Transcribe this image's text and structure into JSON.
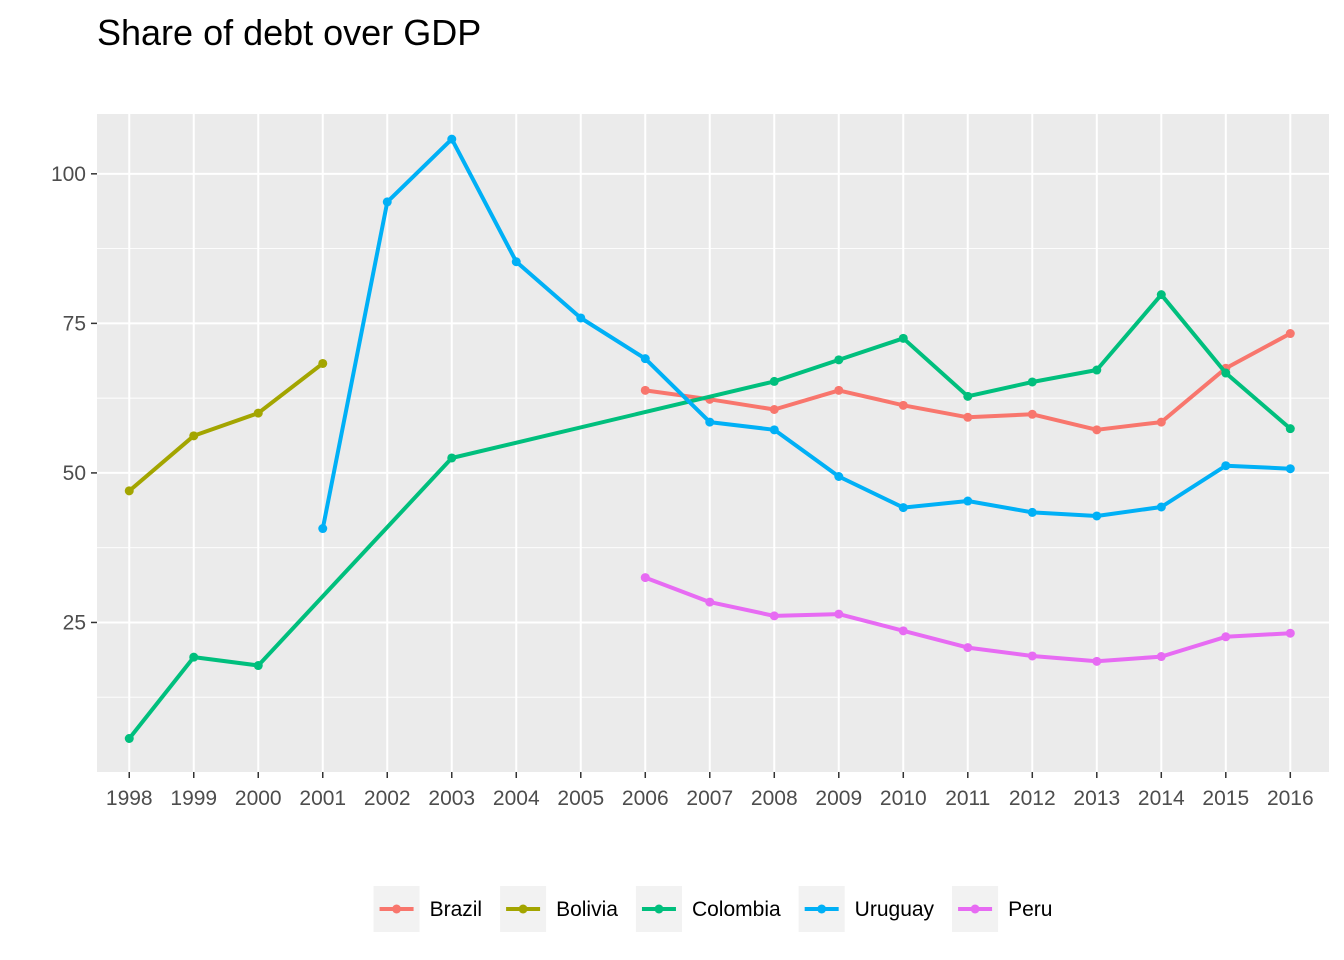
{
  "chart_data": {
    "type": "line",
    "title": "Share of debt over GDP",
    "xlabel": "",
    "ylabel": "",
    "x": [
      1998,
      1999,
      2000,
      2001,
      2002,
      2003,
      2004,
      2005,
      2006,
      2007,
      2008,
      2009,
      2010,
      2011,
      2012,
      2013,
      2014,
      2015,
      2016
    ],
    "x_tick_labels": [
      "1998",
      "1999",
      "2000",
      "2001",
      "2002",
      "2003",
      "2004",
      "2005",
      "2006",
      "2007",
      "2008",
      "2009",
      "2010",
      "2011",
      "2012",
      "2013",
      "2014",
      "2015",
      "2016"
    ],
    "y_ticks": [
      25,
      50,
      75,
      100
    ],
    "y_tick_labels": [
      "25",
      "50",
      "75",
      "100"
    ],
    "ylim": [
      0,
      110
    ],
    "xlim": [
      1997.5,
      2016.6
    ],
    "grid": true,
    "legend_position": "bottom",
    "series": [
      {
        "name": "Brazil",
        "color": "#F8766D",
        "points": [
          [
            2006,
            63.8
          ],
          [
            2007,
            62.3
          ],
          [
            2008,
            60.6
          ],
          [
            2009,
            63.8
          ],
          [
            2010,
            61.3
          ],
          [
            2011,
            59.3
          ],
          [
            2012,
            59.8
          ],
          [
            2013,
            57.2
          ],
          [
            2014,
            58.5
          ],
          [
            2015,
            67.5
          ],
          [
            2016,
            73.3
          ]
        ]
      },
      {
        "name": "Bolivia",
        "color": "#A3A500",
        "points": [
          [
            1998,
            47.0
          ],
          [
            1999,
            56.2
          ],
          [
            2000,
            60.0
          ],
          [
            2001,
            68.3
          ]
        ]
      },
      {
        "name": "Colombia",
        "color": "#00BF7D",
        "points": [
          [
            1998,
            5.6
          ],
          [
            1999,
            19.2
          ],
          [
            2000,
            17.8
          ],
          [
            2003,
            52.5
          ],
          [
            2008,
            65.3
          ],
          [
            2009,
            68.9
          ],
          [
            2010,
            72.5
          ],
          [
            2011,
            62.8
          ],
          [
            2012,
            65.2
          ],
          [
            2013,
            67.2
          ],
          [
            2014,
            79.8
          ],
          [
            2015,
            66.7
          ],
          [
            2016,
            57.4
          ]
        ]
      },
      {
        "name": "Uruguay",
        "color": "#00B0F6",
        "points": [
          [
            2001,
            40.7
          ],
          [
            2002,
            95.3
          ],
          [
            2003,
            105.8
          ],
          [
            2004,
            85.3
          ],
          [
            2005,
            75.9
          ],
          [
            2006,
            69.1
          ],
          [
            2007,
            58.5
          ],
          [
            2008,
            57.2
          ],
          [
            2009,
            49.4
          ],
          [
            2010,
            44.2
          ],
          [
            2011,
            45.3
          ],
          [
            2012,
            43.4
          ],
          [
            2013,
            42.8
          ],
          [
            2014,
            44.3
          ],
          [
            2015,
            51.2
          ],
          [
            2016,
            50.7
          ]
        ]
      },
      {
        "name": "Peru",
        "color": "#E76BF3",
        "points": [
          [
            2006,
            32.5
          ],
          [
            2007,
            28.4
          ],
          [
            2008,
            26.1
          ],
          [
            2009,
            26.4
          ],
          [
            2010,
            23.6
          ],
          [
            2011,
            20.8
          ],
          [
            2012,
            19.4
          ],
          [
            2013,
            18.5
          ],
          [
            2014,
            19.3
          ],
          [
            2015,
            22.6
          ],
          [
            2016,
            23.2
          ]
        ]
      }
    ]
  }
}
